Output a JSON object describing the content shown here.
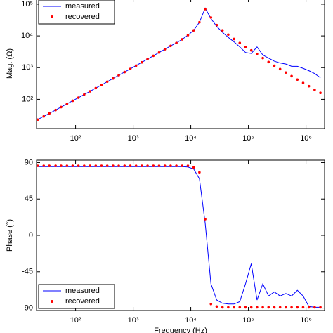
{
  "chart_data": [
    {
      "type": "line",
      "ylabel": "Mag. (Ω)",
      "xscale": "log",
      "yscale": "log",
      "legend": "upper left",
      "xlim": [
        21,
        2100000
      ],
      "ylim": [
        12,
        150000
      ],
      "xticks": [
        {
          "value": 100,
          "label": "10²"
        },
        {
          "value": 1000,
          "label": "10³"
        },
        {
          "value": 10000,
          "label": "10⁴"
        },
        {
          "value": 100000,
          "label": "10⁵"
        },
        {
          "value": 1000000,
          "label": "10⁶"
        }
      ],
      "yticks": [
        {
          "value": 100,
          "label": "10²"
        },
        {
          "value": 1000,
          "label": "10³"
        },
        {
          "value": 10000,
          "label": "10⁴"
        },
        {
          "value": 100000,
          "label": "10⁵"
        }
      ],
      "x": [
        22,
        28,
        35,
        45,
        56,
        71,
        89,
        112,
        141,
        178,
        224,
        282,
        355,
        447,
        562,
        708,
        891,
        1122,
        1413,
        1778,
        2239,
        2818,
        3548,
        4467,
        5623,
        7079,
        8913,
        11220,
        14125,
        17783,
        22387,
        28184,
        35481,
        44668,
        56234,
        70795,
        89125,
        112202,
        141254,
        177828,
        223872,
        281838,
        354813,
        446684,
        562341,
        707946,
        891251,
        1122018,
        1412538,
        1778279
      ],
      "series": [
        {
          "name": "measured",
          "color": "#0000ff",
          "style": "line",
          "values": [
            23,
            29,
            36,
            46,
            57,
            72,
            90,
            113,
            142,
            179,
            226,
            285,
            360,
            455,
            575,
            725,
            915,
            1160,
            1470,
            1860,
            2360,
            3000,
            3800,
            4850,
            6000,
            7800,
            10500,
            15000,
            27000,
            75000,
            35000,
            20000,
            13000,
            9000,
            6500,
            4500,
            3000,
            2800,
            4500,
            2500,
            2000,
            1600,
            1400,
            1300,
            1100,
            1100,
            950,
            800,
            650,
            480
          ]
        },
        {
          "name": "recovered",
          "color": "#ff0000",
          "style": "dots",
          "values": [
            23,
            29,
            36,
            46,
            57,
            72,
            90,
            113,
            142,
            179,
            226,
            285,
            360,
            455,
            575,
            725,
            915,
            1160,
            1470,
            1860,
            2360,
            3000,
            3800,
            4850,
            6000,
            7800,
            10500,
            15000,
            27000,
            70000,
            38000,
            22000,
            15000,
            11000,
            8000,
            6000,
            4500,
            3500,
            2700,
            2000,
            1500,
            1150,
            900,
            700,
            540,
            420,
            330,
            260,
            200,
            160
          ]
        }
      ]
    },
    {
      "type": "line",
      "ylabel": "Phase (°)",
      "xlabel": "Frequency (Hz)",
      "xscale": "log",
      "legend": "lower left",
      "xlim": [
        21,
        2100000
      ],
      "ylim": [
        -93,
        93
      ],
      "xticks": [
        {
          "value": 100,
          "label": "10²"
        },
        {
          "value": 1000,
          "label": "10³"
        },
        {
          "value": 10000,
          "label": "10⁴"
        },
        {
          "value": 100000,
          "label": "10⁵"
        },
        {
          "value": 1000000,
          "label": "10⁶"
        }
      ],
      "yticks": [
        90,
        45,
        0,
        -45,
        -90
      ],
      "x": [
        22,
        28,
        35,
        45,
        56,
        71,
        89,
        112,
        141,
        178,
        224,
        282,
        355,
        447,
        562,
        708,
        891,
        1122,
        1413,
        1778,
        2239,
        2818,
        3548,
        4467,
        5623,
        7079,
        8913,
        11220,
        14125,
        17783,
        22387,
        28184,
        35481,
        44668,
        56234,
        70795,
        89125,
        112202,
        141254,
        177828,
        223872,
        281838,
        354813,
        446684,
        562341,
        707946,
        891251,
        1122018,
        1412538,
        1778279
      ],
      "series": [
        {
          "name": "measured",
          "color": "#0000ff",
          "style": "line",
          "values": [
            85,
            85,
            85,
            85,
            85,
            85,
            85,
            85,
            85,
            85,
            85,
            85,
            85,
            85,
            85,
            85,
            85,
            85,
            85,
            85,
            85,
            85,
            85,
            85,
            85,
            85,
            84.5,
            82,
            70,
            15,
            -60,
            -80,
            -84,
            -85,
            -85,
            -82,
            -60,
            -35,
            -80,
            -60,
            -75,
            -70,
            -75,
            -72,
            -75,
            -68,
            -75,
            -88,
            -89,
            -89
          ]
        },
        {
          "name": "recovered",
          "color": "#ff0000",
          "style": "dots",
          "values": [
            86,
            86,
            86,
            86,
            86,
            86,
            86,
            86,
            86,
            86,
            86,
            86,
            86,
            86,
            86,
            86,
            86,
            86,
            86,
            86,
            86,
            86,
            86,
            86,
            86,
            86,
            86,
            84,
            78,
            20,
            -85,
            -88,
            -89,
            -89,
            -89,
            -89,
            -89,
            -89,
            -89,
            -89,
            -89,
            -89,
            -89,
            -89,
            -89,
            -89,
            -89,
            -89,
            -89,
            -89
          ]
        }
      ]
    }
  ]
}
